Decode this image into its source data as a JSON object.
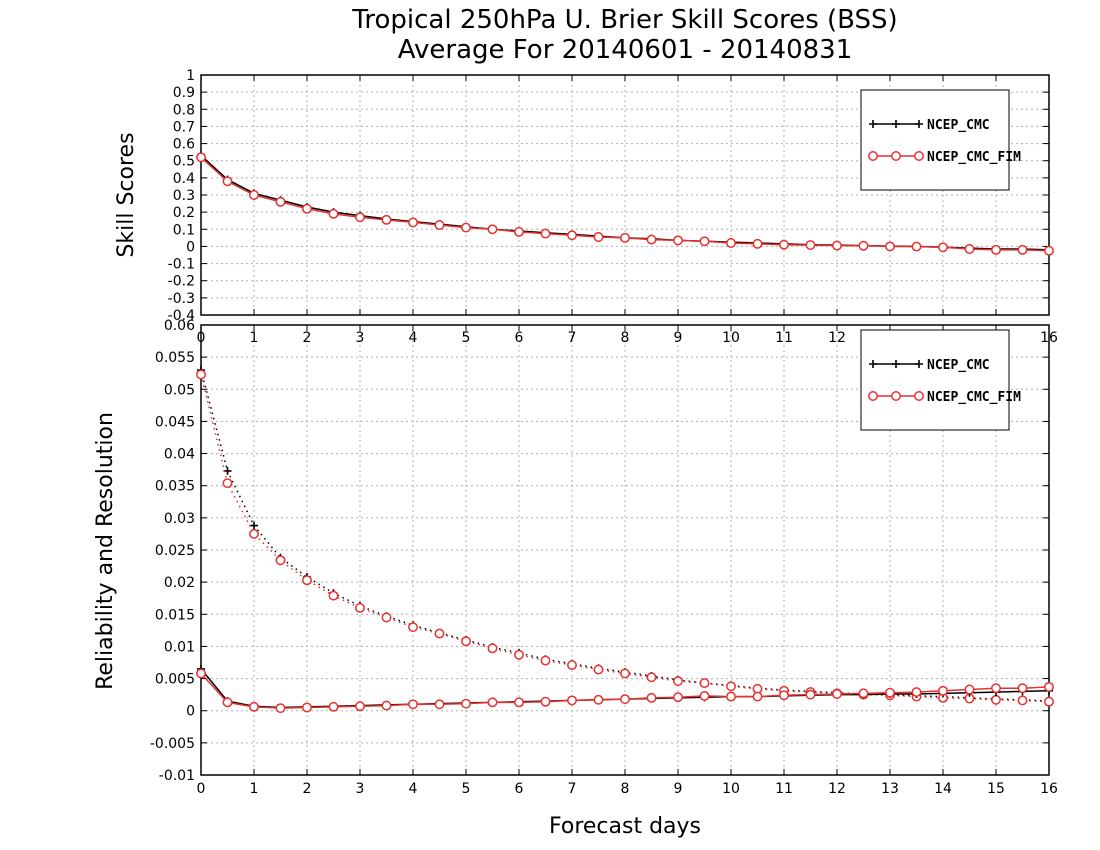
{
  "title_line1": "Tropical 250hPa U. Brier Skill Scores (BSS)",
  "title_line2": "Average For 20140601 - 20140831",
  "colors": {
    "ncep_cmc": "#000000",
    "ncep_cmc_fim": "#e8302e",
    "grid": "#b0b0b0"
  },
  "chart_data": [
    {
      "type": "line",
      "ylabel": "Skill Scores",
      "xlim": [
        0,
        16
      ],
      "ylim": [
        -0.4,
        1
      ],
      "x_ticks": [
        "0",
        "1",
        "2",
        "3",
        "4",
        "5",
        "6",
        "7",
        "8",
        "9",
        "10",
        "11",
        "12",
        "13",
        "14",
        "15",
        "16"
      ],
      "y_ticks": [
        "1",
        "0.9",
        "0.8",
        "0.7",
        "0.6",
        "0.5",
        "0.4",
        "0.3",
        "0.2",
        "0.1",
        "0",
        "-0.1",
        "-0.2",
        "-0.3",
        "-0.4"
      ],
      "grid": true,
      "legend": "top-right",
      "x": [
        0,
        0.5,
        1,
        1.5,
        2,
        2.5,
        3,
        3.5,
        4,
        4.5,
        5,
        5.5,
        6,
        6.5,
        7,
        7.5,
        8,
        8.5,
        9,
        9.5,
        10,
        10.5,
        11,
        11.5,
        12,
        12.5,
        13,
        13.5,
        14,
        14.5,
        15,
        15.5,
        16
      ],
      "series": [
        {
          "name": "NCEP_CMC",
          "marker": "plus",
          "line": "solid",
          "values": [
            0.53,
            0.39,
            0.31,
            0.27,
            0.23,
            0.2,
            0.18,
            0.16,
            0.145,
            0.13,
            0.115,
            0.1,
            0.09,
            0.08,
            0.07,
            0.06,
            0.05,
            0.045,
            0.035,
            0.03,
            0.025,
            0.02,
            0.015,
            0.01,
            0.008,
            0.005,
            0.002,
            0.0,
            -0.005,
            -0.01,
            -0.015,
            -0.015,
            -0.02
          ]
        },
        {
          "name": "NCEP_CMC_FIM",
          "marker": "circle",
          "line": "solid",
          "values": [
            0.52,
            0.38,
            0.3,
            0.26,
            0.22,
            0.19,
            0.17,
            0.155,
            0.14,
            0.125,
            0.11,
            0.1,
            0.085,
            0.075,
            0.065,
            0.055,
            0.05,
            0.04,
            0.035,
            0.03,
            0.02,
            0.015,
            0.01,
            0.008,
            0.005,
            0.004,
            0.0,
            -0.001,
            -0.005,
            -0.015,
            -0.02,
            -0.02,
            -0.025
          ]
        }
      ]
    },
    {
      "type": "line",
      "xlabel": "Forecast days",
      "ylabel": "Reliability and Resolution",
      "xlim": [
        0,
        16
      ],
      "ylim": [
        -0.01,
        0.06
      ],
      "x_ticks": [
        "0",
        "1",
        "2",
        "3",
        "4",
        "5",
        "6",
        "7",
        "8",
        "9",
        "10",
        "11",
        "12",
        "13",
        "14",
        "15",
        "16"
      ],
      "y_ticks": [
        "0.06",
        "0.055",
        "0.05",
        "0.045",
        "0.04",
        "0.035",
        "0.03",
        "0.025",
        "0.02",
        "0.015",
        "0.01",
        "0.005",
        "0",
        "-0.005",
        "-0.01"
      ],
      "grid": true,
      "legend": "top-right",
      "x": [
        0,
        0.5,
        1,
        1.5,
        2,
        2.5,
        3,
        3.5,
        4,
        4.5,
        5,
        5.5,
        6,
        6.5,
        7,
        7.5,
        8,
        8.5,
        9,
        9.5,
        10,
        10.5,
        11,
        11.5,
        12,
        12.5,
        13,
        13.5,
        14,
        14.5,
        15,
        15.5,
        16
      ],
      "series": [
        {
          "name": "NCEP_CMC",
          "marker": "plus",
          "line": "dotted",
          "values": [
            0.053,
            0.0373,
            0.0288,
            0.0238,
            0.0208,
            0.0183,
            0.0163,
            0.0147,
            0.0133,
            0.0121,
            0.011,
            0.0099,
            0.009,
            0.008,
            0.0073,
            0.0066,
            0.006,
            0.0054,
            0.0048,
            0.0043,
            0.0039,
            0.0035,
            0.0032,
            0.003,
            0.0028,
            0.0026,
            0.0025,
            0.0023,
            0.0022,
            0.002,
            0.0018,
            0.0017,
            0.0015
          ]
        },
        {
          "name": "NCEP_CMC_FIM",
          "marker": "circle",
          "line": "dotted",
          "values": [
            0.0523,
            0.0354,
            0.0275,
            0.0234,
            0.0203,
            0.0179,
            0.016,
            0.0145,
            0.013,
            0.012,
            0.0108,
            0.0097,
            0.0087,
            0.0078,
            0.0071,
            0.0064,
            0.0058,
            0.0052,
            0.0046,
            0.0043,
            0.0038,
            0.0034,
            0.0031,
            0.0029,
            0.0027,
            0.0025,
            0.0024,
            0.0022,
            0.002,
            0.0019,
            0.0017,
            0.0016,
            0.0014
          ]
        },
        {
          "name": "NCEP_CMC",
          "marker": "plus",
          "line": "solid",
          "values": [
            0.0065,
            0.0015,
            0.0007,
            0.0005,
            0.0006,
            0.0007,
            0.0008,
            0.0009,
            0.001,
            0.0011,
            0.0012,
            0.0013,
            0.0014,
            0.0015,
            0.0016,
            0.0017,
            0.0018,
            0.0019,
            0.002,
            0.0021,
            0.0022,
            0.0022,
            0.0023,
            0.0024,
            0.0025,
            0.0025,
            0.0026,
            0.0026,
            0.0027,
            0.0028,
            0.0029,
            0.003,
            0.0031
          ]
        },
        {
          "name": "NCEP_CMC_FIM",
          "marker": "circle",
          "line": "solid",
          "values": [
            0.0058,
            0.0013,
            0.0006,
            0.0004,
            0.0005,
            0.0006,
            0.0007,
            0.0008,
            0.001,
            0.001,
            0.0011,
            0.0013,
            0.0013,
            0.0014,
            0.0016,
            0.0017,
            0.0018,
            0.002,
            0.0021,
            0.0023,
            0.0022,
            0.0022,
            0.0024,
            0.0025,
            0.0026,
            0.0027,
            0.0028,
            0.0029,
            0.0031,
            0.0033,
            0.0035,
            0.0035,
            0.0037
          ]
        }
      ]
    }
  ]
}
